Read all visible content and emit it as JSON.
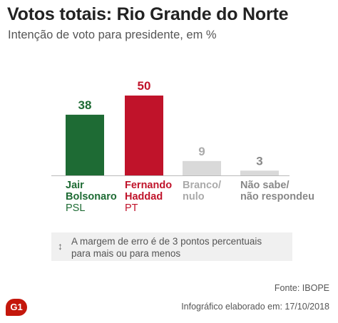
{
  "header": {
    "title": "Votos totais: Rio Grande do Norte",
    "subtitle": "Intenção de voto para presidente, em %"
  },
  "chart_data": {
    "type": "bar",
    "title": "Votos totais: Rio Grande do Norte",
    "subtitle": "Intenção de voto para presidente, em %",
    "categories": [
      "Jair Bolsonaro",
      "Fernando Haddad",
      "Branco/ nulo",
      "Não sabe/ não respondeu"
    ],
    "category_lines": [
      [
        "Jair",
        "Bolsonaro"
      ],
      [
        "Fernando",
        "Haddad"
      ],
      [
        "Branco/",
        "nulo"
      ],
      [
        "Não sabe/",
        "não respondeu"
      ]
    ],
    "parties": [
      "PSL",
      "PT",
      "",
      ""
    ],
    "values": [
      38,
      50,
      9,
      3
    ],
    "colors": [
      "#1e6b34",
      "#c0132a",
      "#d9d9d9",
      "#d9d9d9"
    ],
    "label_colors": [
      "#1e6b34",
      "#c0132a",
      "#aaaaaa",
      "#888888"
    ],
    "xlabel": "",
    "ylabel": "",
    "ylim": [
      0,
      50
    ],
    "grid": false,
    "legend": "none"
  },
  "note": {
    "icon": "vertical-arrows-icon",
    "text_line1": "A margem de erro é de 3 pontos percentuais",
    "text_line2": "para mais ou para menos"
  },
  "footer": {
    "source": "Fonte: IBOPE",
    "credits": "Infográfico elaborado em: 17/10/2018",
    "logo": "G1",
    "logo_color": "#c4170c"
  }
}
